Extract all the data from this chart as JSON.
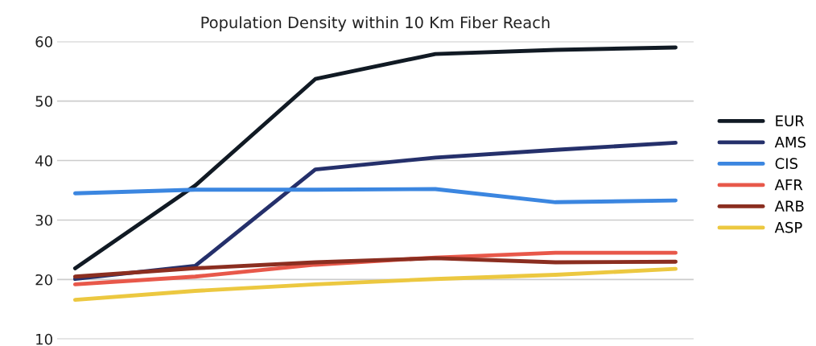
{
  "chart_data": {
    "type": "line",
    "title": "Population Density within 10 Km Fiber Reach",
    "categories": [
      null,
      null,
      null,
      null,
      null,
      null
    ],
    "series": [
      {
        "name": "EUR",
        "color": "#111a24",
        "values": [
          21.9,
          35.8,
          53.7,
          57.9,
          58.6,
          59.0
        ]
      },
      {
        "name": "AMS",
        "color": "#25306b",
        "values": [
          20.1,
          22.3,
          38.5,
          40.5,
          41.8,
          43.0
        ]
      },
      {
        "name": "CIS",
        "color": "#3b86e0",
        "values": [
          34.5,
          35.1,
          35.1,
          35.2,
          33.0,
          33.3
        ]
      },
      {
        "name": "AFR",
        "color": "#e8584a",
        "values": [
          19.2,
          20.5,
          22.5,
          23.7,
          24.5,
          24.5
        ]
      },
      {
        "name": "ARB",
        "color": "#8b2e20",
        "values": [
          20.5,
          21.9,
          22.9,
          23.6,
          22.9,
          23.0
        ]
      },
      {
        "name": "ASP",
        "color": "#ecc840",
        "values": [
          16.6,
          18.1,
          19.2,
          20.1,
          20.8,
          21.8
        ]
      }
    ],
    "ylim": [
      10,
      60
    ],
    "yticks": [
      10,
      20,
      30,
      40,
      50,
      60
    ],
    "grid": "y",
    "legend": "right",
    "marker": "none",
    "line_style": "solid"
  }
}
